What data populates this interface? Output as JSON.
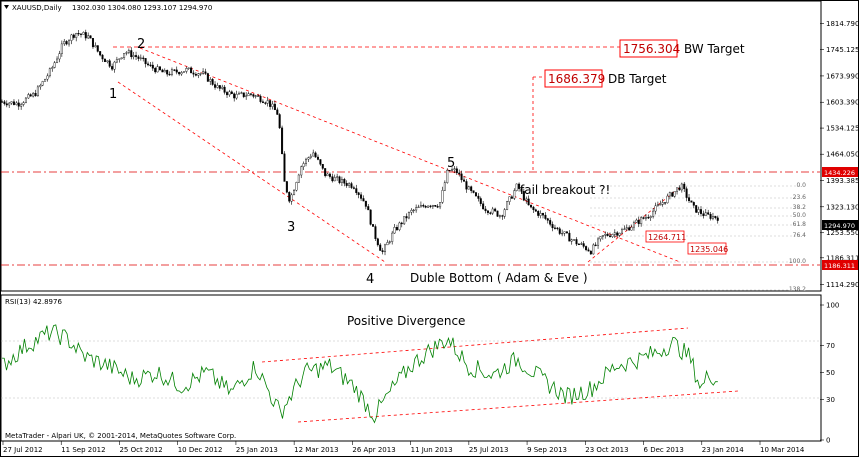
{
  "window": {
    "symbol_tf": "XAUUSD,Daily",
    "ohlc": "1302.030 1304.080 1293.107 1294.970",
    "rsi_label": "RSI(13) 42.8976",
    "copyright": "MetaTrader - Alpari UK, © 2001-2014, MetaQuotes Software Corp."
  },
  "colors": {
    "candle": "#000000",
    "trend": "#ff0000",
    "rsi_line": "#008000",
    "box_border": "#ff0000",
    "level_tag": "#e00000",
    "price_tag": "#000000"
  },
  "chart_data": {
    "type": "candlestick",
    "price_axis": {
      "ticks": [
        "1814.790",
        "1745.125",
        "1673.990",
        "1603.390",
        "1534.125",
        "1464.050",
        "1393.385",
        "1323.130",
        "1253.550",
        "1186.311",
        "1114.290"
      ],
      "range": [
        1100,
        1840
      ]
    },
    "x_axis": {
      "ticks": [
        "27 Jul 2012",
        "11 Sep 2012",
        "25 Oct 2012",
        "10 Dec 2012",
        "25 Jan 2013",
        "12 Mar 2013",
        "26 Apr 2013",
        "11 Jun 2013",
        "25 Jul 2013",
        "9 Sep 2013",
        "23 Oct 2013",
        "6 Dec 2013",
        "23 Jan 2014",
        "10 Mar 2014"
      ]
    },
    "price_path": [
      [
        0,
        1605
      ],
      [
        0.02,
        1600
      ],
      [
        0.04,
        1625
      ],
      [
        0.06,
        1690
      ],
      [
        0.075,
        1760
      ],
      [
        0.09,
        1790
      ],
      [
        0.105,
        1780
      ],
      [
        0.12,
        1730
      ],
      [
        0.135,
        1700
      ],
      [
        0.15,
        1740
      ],
      [
        0.165,
        1725
      ],
      [
        0.18,
        1700
      ],
      [
        0.2,
        1680
      ],
      [
        0.225,
        1690
      ],
      [
        0.245,
        1680
      ],
      [
        0.265,
        1640
      ],
      [
        0.285,
        1620
      ],
      [
        0.305,
        1625
      ],
      [
        0.325,
        1605
      ],
      [
        0.338,
        1570
      ],
      [
        0.345,
        1390
      ],
      [
        0.352,
        1340
      ],
      [
        0.365,
        1430
      ],
      [
        0.38,
        1470
      ],
      [
        0.395,
        1410
      ],
      [
        0.415,
        1390
      ],
      [
        0.43,
        1380
      ],
      [
        0.445,
        1330
      ],
      [
        0.455,
        1250
      ],
      [
        0.465,
        1200
      ],
      [
        0.48,
        1260
      ],
      [
        0.5,
        1310
      ],
      [
        0.52,
        1330
      ],
      [
        0.535,
        1330
      ],
      [
        0.545,
        1420
      ],
      [
        0.555,
        1420
      ],
      [
        0.57,
        1370
      ],
      [
        0.59,
        1320
      ],
      [
        0.61,
        1300
      ],
      [
        0.63,
        1380
      ],
      [
        0.645,
        1320
      ],
      [
        0.66,
        1300
      ],
      [
        0.68,
        1260
      ],
      [
        0.7,
        1230
      ],
      [
        0.72,
        1205
      ],
      [
        0.735,
        1245
      ],
      [
        0.76,
        1260
      ],
      [
        0.79,
        1300
      ],
      [
        0.81,
        1340
      ],
      [
        0.83,
        1380
      ],
      [
        0.845,
        1320
      ],
      [
        0.86,
        1300
      ],
      [
        0.875,
        1295
      ]
    ],
    "levels": [
      {
        "label": "1756.304",
        "price": 1756.304,
        "text": "BW Target"
      },
      {
        "label": "1686.379",
        "price": 1686.379,
        "text": "DB Target"
      },
      {
        "label": "1434.226",
        "price": 1434.226
      },
      {
        "label": "1186.311",
        "price": 1186.311
      },
      {
        "label": "1264.711",
        "price": 1264.711
      },
      {
        "label": "1235.046",
        "price": 1235.046
      }
    ],
    "fib_labels": [
      "0.0",
      "23.6",
      "38.2",
      "50.0",
      "61.8",
      "76.4",
      "100.0",
      "138.2"
    ],
    "last_price": "1294.970",
    "waves": [
      "1",
      "2",
      "3",
      "4",
      "5"
    ],
    "annotations": {
      "fail_breakout": "fail breakout ?!",
      "double_bottom": "Duble Bottom ( Adam & Eve )",
      "positive_divergence": "Positive Divergence"
    },
    "rsi": {
      "ticks": [
        "100",
        "70",
        "50",
        "30",
        "0"
      ],
      "range": [
        0,
        100
      ],
      "path": [
        [
          0,
          55
        ],
        [
          0.03,
          70
        ],
        [
          0.06,
          80
        ],
        [
          0.08,
          75
        ],
        [
          0.1,
          62
        ],
        [
          0.13,
          55
        ],
        [
          0.16,
          45
        ],
        [
          0.19,
          50
        ],
        [
          0.22,
          40
        ],
        [
          0.25,
          50
        ],
        [
          0.28,
          35
        ],
        [
          0.31,
          55
        ],
        [
          0.34,
          20
        ],
        [
          0.37,
          50
        ],
        [
          0.4,
          55
        ],
        [
          0.43,
          40
        ],
        [
          0.455,
          18
        ],
        [
          0.48,
          40
        ],
        [
          0.5,
          55
        ],
        [
          0.52,
          65
        ],
        [
          0.545,
          75
        ],
        [
          0.57,
          55
        ],
        [
          0.6,
          48
        ],
        [
          0.63,
          60
        ],
        [
          0.66,
          45
        ],
        [
          0.69,
          32
        ],
        [
          0.72,
          38
        ],
        [
          0.75,
          55
        ],
        [
          0.78,
          60
        ],
        [
          0.8,
          65
        ],
        [
          0.82,
          72
        ],
        [
          0.84,
          62
        ],
        [
          0.855,
          38
        ],
        [
          0.865,
          50
        ],
        [
          0.875,
          43
        ]
      ]
    }
  }
}
